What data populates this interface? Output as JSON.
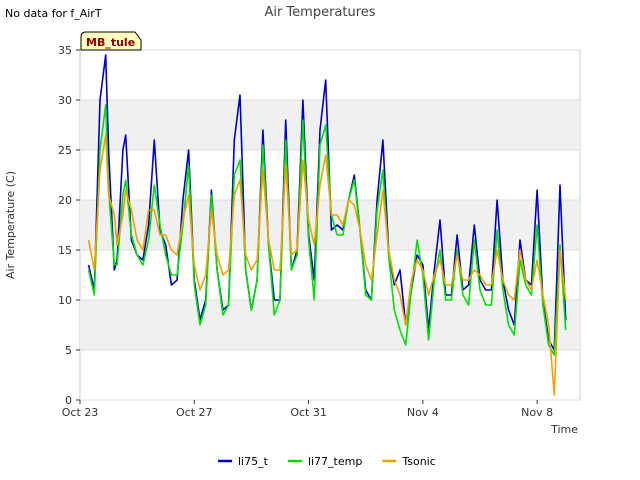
{
  "notice": "No data for f_AirT",
  "site_badge": "MB_tule",
  "colors": {
    "li75_t": "#0000cc",
    "li77_temp": "#00e000",
    "Tsonic": "#f0a000"
  },
  "chart_data": {
    "type": "line",
    "title": "Air Temperatures",
    "xlabel": "Time",
    "ylabel": "Air Temperature (C)",
    "xlim": [
      0,
      17.5
    ],
    "ylim": [
      0,
      35
    ],
    "yticks": [
      0,
      5,
      10,
      15,
      20,
      25,
      30,
      35
    ],
    "xticks": [
      {
        "x": 0,
        "label": "Oct 23"
      },
      {
        "x": 4,
        "label": "Oct 27"
      },
      {
        "x": 8,
        "label": "Oct 31"
      },
      {
        "x": 12,
        "label": "Nov 4"
      },
      {
        "x": 16,
        "label": "Nov 8"
      }
    ],
    "legend_position": "bottom",
    "series": [
      {
        "name": "li75_t",
        "x": [
          0.3,
          0.5,
          0.7,
          0.9,
          1.0,
          1.2,
          1.3,
          1.5,
          1.6,
          1.8,
          2.0,
          2.2,
          2.4,
          2.6,
          2.8,
          3.0,
          3.2,
          3.4,
          3.6,
          3.8,
          4.0,
          4.2,
          4.4,
          4.6,
          4.8,
          5.0,
          5.2,
          5.4,
          5.6,
          5.8,
          6.0,
          6.2,
          6.4,
          6.6,
          6.8,
          7.0,
          7.2,
          7.4,
          7.6,
          7.8,
          8.0,
          8.2,
          8.4,
          8.6,
          8.8,
          9.0,
          9.2,
          9.4,
          9.6,
          9.8,
          10.0,
          10.2,
          10.4,
          10.6,
          10.8,
          11.0,
          11.2,
          11.4,
          11.6,
          11.8,
          12.0,
          12.2,
          12.4,
          12.6,
          12.8,
          13.0,
          13.2,
          13.4,
          13.6,
          13.8,
          14.0,
          14.2,
          14.4,
          14.6,
          14.8,
          15.0,
          15.2,
          15.4,
          15.6,
          15.8,
          16.0,
          16.2,
          16.4,
          16.6,
          16.8,
          17.0
        ],
        "y": [
          13.5,
          11.0,
          30.0,
          34.5,
          25.0,
          13.0,
          14.0,
          25.0,
          26.5,
          16.0,
          14.5,
          14.0,
          17.5,
          26.0,
          17.0,
          15.5,
          11.5,
          12.0,
          20.0,
          25.0,
          12.0,
          8.0,
          10.0,
          21.0,
          13.0,
          9.0,
          9.5,
          26.0,
          30.5,
          13.0,
          9.0,
          12.0,
          27.0,
          15.5,
          10.0,
          10.0,
          28.0,
          13.0,
          15.0,
          30.0,
          16.5,
          12.0,
          27.0,
          32.0,
          17.0,
          17.5,
          17.0,
          20.0,
          22.5,
          17.0,
          11.0,
          10.0,
          20.0,
          26.0,
          15.0,
          11.5,
          13.0,
          7.5,
          11.0,
          14.5,
          13.5,
          7.0,
          13.0,
          18.0,
          10.5,
          10.5,
          16.5,
          11.0,
          11.5,
          17.5,
          12.0,
          11.0,
          11.0,
          20.0,
          12.0,
          9.0,
          7.5,
          16.0,
          12.0,
          11.5,
          21.0,
          10.0,
          6.0,
          5.0,
          21.5,
          8.0
        ],
        "color": "#0000cc"
      },
      {
        "name": "li77_temp",
        "x": [
          0.3,
          0.5,
          0.7,
          0.9,
          1.0,
          1.2,
          1.3,
          1.5,
          1.6,
          1.8,
          2.0,
          2.2,
          2.4,
          2.6,
          2.8,
          3.0,
          3.2,
          3.4,
          3.6,
          3.8,
          4.0,
          4.2,
          4.4,
          4.6,
          4.8,
          5.0,
          5.2,
          5.4,
          5.6,
          5.8,
          6.0,
          6.2,
          6.4,
          6.6,
          6.8,
          7.0,
          7.2,
          7.4,
          7.6,
          7.8,
          8.0,
          8.2,
          8.4,
          8.6,
          8.8,
          9.0,
          9.2,
          9.4,
          9.6,
          9.8,
          10.0,
          10.2,
          10.4,
          10.6,
          10.8,
          11.0,
          11.2,
          11.4,
          11.6,
          11.8,
          12.0,
          12.2,
          12.4,
          12.6,
          12.8,
          13.0,
          13.2,
          13.4,
          13.6,
          13.8,
          14.0,
          14.2,
          14.4,
          14.6,
          14.8,
          15.0,
          15.2,
          15.4,
          15.6,
          15.8,
          16.0,
          16.2,
          16.4,
          16.6,
          16.8,
          17.0
        ],
        "y": [
          13.0,
          10.5,
          25.0,
          29.5,
          21.0,
          13.5,
          13.5,
          20.5,
          22.0,
          16.5,
          14.5,
          13.5,
          16.0,
          21.5,
          17.5,
          14.5,
          12.5,
          12.5,
          17.5,
          23.5,
          11.5,
          7.5,
          9.5,
          20.5,
          13.0,
          8.5,
          9.5,
          22.5,
          24.0,
          13.0,
          9.0,
          12.0,
          25.5,
          15.5,
          8.5,
          10.0,
          26.0,
          13.0,
          14.5,
          28.0,
          16.0,
          10.0,
          25.5,
          27.5,
          18.5,
          16.5,
          16.5,
          20.0,
          22.0,
          17.0,
          10.5,
          10.0,
          19.0,
          23.0,
          14.5,
          9.0,
          7.0,
          5.5,
          11.0,
          16.0,
          12.5,
          6.0,
          12.0,
          15.0,
          10.0,
          10.0,
          15.0,
          10.5,
          9.5,
          16.0,
          11.0,
          9.5,
          9.5,
          17.0,
          11.0,
          7.5,
          6.5,
          14.0,
          11.5,
          10.5,
          17.5,
          9.5,
          5.5,
          4.5,
          15.5,
          7.0
        ],
        "color": "#00e000"
      },
      {
        "name": "Tsonic",
        "x": [
          0.3,
          0.5,
          0.7,
          0.9,
          1.0,
          1.2,
          1.3,
          1.5,
          1.6,
          1.8,
          2.0,
          2.2,
          2.4,
          2.6,
          2.8,
          3.0,
          3.2,
          3.4,
          3.6,
          3.8,
          4.0,
          4.2,
          4.4,
          4.6,
          4.8,
          5.0,
          5.2,
          5.4,
          5.6,
          5.8,
          6.0,
          6.2,
          6.4,
          6.6,
          6.8,
          7.0,
          7.2,
          7.4,
          7.6,
          7.8,
          8.0,
          8.2,
          8.4,
          8.6,
          8.8,
          9.0,
          9.2,
          9.4,
          9.6,
          9.8,
          10.0,
          10.2,
          10.4,
          10.6,
          10.8,
          11.0,
          11.2,
          11.4,
          11.6,
          11.8,
          12.0,
          12.2,
          12.4,
          12.6,
          12.8,
          13.0,
          13.2,
          13.4,
          13.6,
          13.8,
          14.0,
          14.2,
          14.4,
          14.6,
          14.8,
          15.0,
          15.2,
          15.4,
          15.6,
          15.8,
          16.0,
          16.2,
          16.4,
          16.6,
          16.8,
          17.0
        ],
        "y": [
          16.0,
          13.0,
          23.0,
          26.5,
          20.5,
          18.5,
          15.5,
          18.5,
          21.0,
          19.0,
          16.0,
          15.0,
          19.0,
          19.0,
          16.5,
          16.5,
          15.0,
          14.5,
          18.0,
          20.5,
          13.5,
          11.0,
          12.5,
          19.0,
          14.5,
          12.5,
          13.0,
          20.5,
          22.0,
          14.5,
          13.0,
          14.0,
          23.0,
          16.0,
          13.0,
          13.0,
          23.5,
          14.5,
          15.0,
          24.0,
          18.0,
          15.5,
          21.5,
          24.5,
          18.5,
          18.5,
          17.5,
          20.0,
          19.5,
          17.0,
          13.5,
          12.0,
          16.5,
          21.0,
          15.0,
          12.0,
          10.5,
          7.5,
          12.0,
          14.0,
          13.0,
          10.5,
          12.5,
          14.0,
          11.5,
          11.5,
          14.5,
          12.0,
          12.0,
          13.0,
          12.5,
          11.5,
          11.5,
          15.0,
          12.0,
          10.5,
          10.0,
          15.0,
          12.0,
          11.0,
          14.0,
          10.5,
          7.5,
          0.5,
          15.0,
          10.0
        ],
        "color": "#f0a000"
      }
    ]
  }
}
